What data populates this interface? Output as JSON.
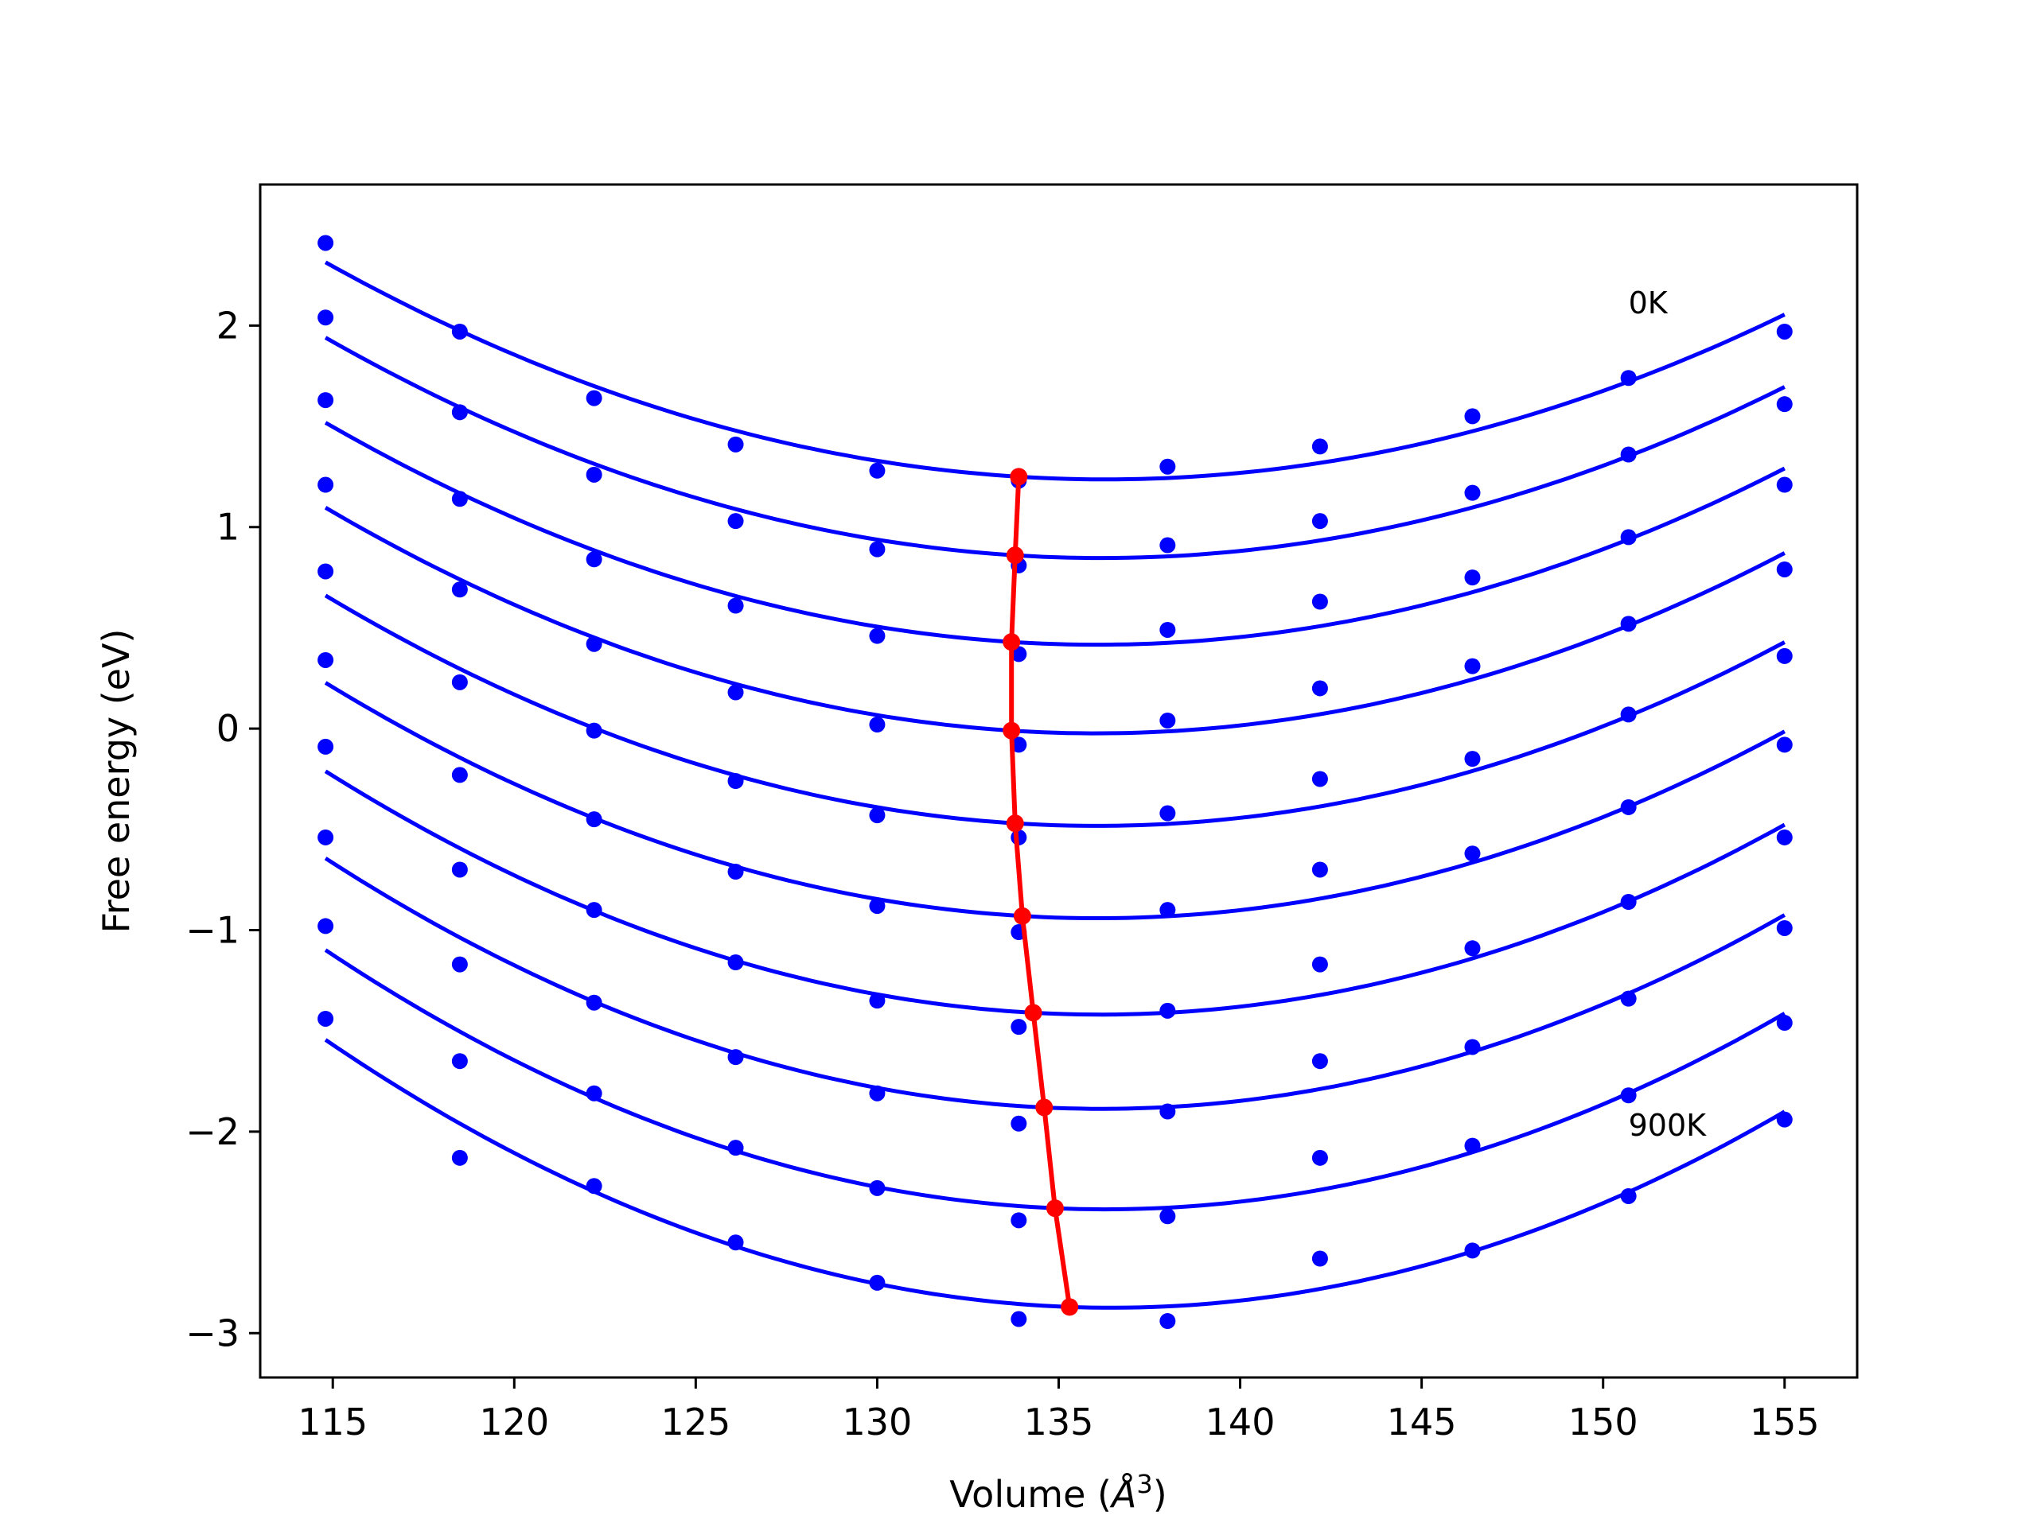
{
  "chart_data": {
    "type": "scatter",
    "title": "",
    "xlabel": "Volume (",
    "xlabel_unit": "Å",
    "xlabel_exp": "3",
    "xlabel_close": ")",
    "ylabel": "Free energy (eV)",
    "xlim": [
      113,
      157
    ],
    "ylim": [
      -3.22,
      2.7
    ],
    "xticks": [
      115,
      120,
      125,
      130,
      135,
      140,
      145,
      150,
      155
    ],
    "yticks": [
      -3,
      -2,
      -1,
      0,
      1,
      2
    ],
    "xtick_labels": [
      "115",
      "120",
      "125",
      "130",
      "135",
      "140",
      "145",
      "150",
      "155"
    ],
    "ytick_labels": [
      "−3",
      "−2",
      "−1",
      "0",
      "1",
      "2"
    ],
    "grid": false,
    "point_color": "#0000ff",
    "curve_color": "#0000ff",
    "min_color": "#ff0000",
    "volumes": [
      114.8,
      118.5,
      122.2,
      126.1,
      130.0,
      133.9,
      138.0,
      142.2,
      146.4,
      150.7,
      155.0
    ],
    "series": [
      {
        "energies": [
          2.41,
          1.97,
          1.64,
          1.41,
          1.28,
          1.23,
          1.3,
          1.4,
          1.55,
          1.74,
          1.97
        ],
        "minimum": [
          133.9,
          1.25
        ]
      },
      {
        "energies": [
          2.04,
          1.57,
          1.26,
          1.03,
          0.89,
          0.81,
          0.91,
          1.03,
          1.17,
          1.36,
          1.61
        ],
        "minimum": [
          133.8,
          0.86
        ]
      },
      {
        "energies": [
          1.63,
          1.14,
          0.84,
          0.61,
          0.46,
          0.37,
          0.49,
          0.63,
          0.75,
          0.95,
          1.21
        ],
        "minimum": [
          133.7,
          0.43
        ]
      },
      {
        "energies": [
          1.21,
          0.69,
          0.42,
          0.18,
          0.02,
          -0.08,
          0.04,
          0.2,
          0.31,
          0.52,
          0.79
        ],
        "minimum": [
          133.7,
          -0.01
        ]
      },
      {
        "energies": [
          0.78,
          0.23,
          -0.01,
          -0.26,
          -0.43,
          -0.54,
          -0.42,
          -0.25,
          -0.15,
          0.07,
          0.36
        ],
        "minimum": [
          133.8,
          -0.47
        ]
      },
      {
        "energies": [
          0.34,
          -0.23,
          -0.45,
          -0.71,
          -0.88,
          -1.01,
          -0.9,
          -0.7,
          -0.62,
          -0.39,
          -0.08
        ],
        "minimum": [
          134.0,
          -0.93
        ]
      },
      {
        "energies": [
          -0.09,
          -0.7,
          -0.9,
          -1.16,
          -1.35,
          -1.48,
          -1.4,
          -1.17,
          -1.09,
          -0.86,
          -0.54
        ],
        "minimum": [
          134.3,
          -1.41
        ]
      },
      {
        "energies": [
          -0.54,
          -1.17,
          -1.36,
          -1.63,
          -1.81,
          -1.96,
          -1.9,
          -1.65,
          -1.58,
          -1.34,
          -0.99
        ],
        "minimum": [
          134.6,
          -1.88
        ]
      },
      {
        "energies": [
          -0.98,
          -1.65,
          -1.81,
          -2.08,
          -2.28,
          -2.44,
          -2.42,
          -2.13,
          -2.07,
          -1.82,
          -1.46
        ],
        "minimum": [
          134.9,
          -2.38
        ]
      },
      {
        "energies": [
          -1.44,
          -2.13,
          -2.27,
          -2.55,
          -2.75,
          -2.93,
          -2.94,
          -2.63,
          -2.59,
          -2.32,
          -1.94
        ],
        "minimum": [
          135.3,
          -2.87
        ]
      }
    ],
    "annotations": [
      {
        "text": "0K",
        "x": 150.7,
        "y": 2.06
      },
      {
        "text": "900K",
        "x": 150.7,
        "y": -2.02
      }
    ]
  }
}
